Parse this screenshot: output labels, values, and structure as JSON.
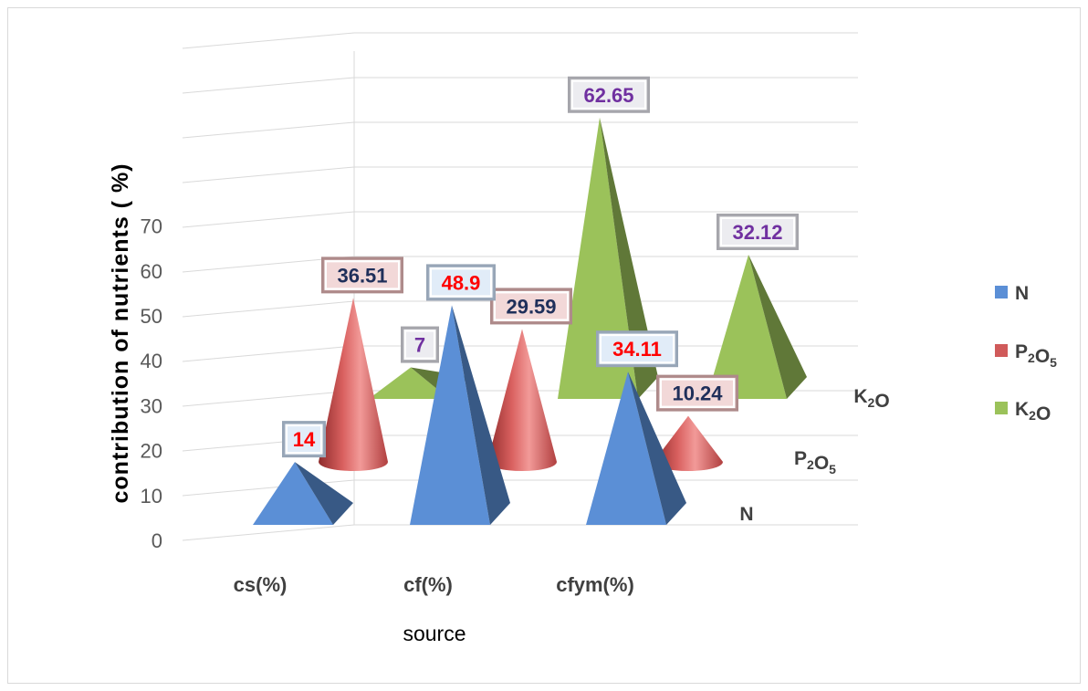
{
  "chart_data": {
    "type": "bar",
    "subtype": "3d-pyramid-cone",
    "title": "",
    "xlabel": "source",
    "ylabel": "contribution of nutrients ( %)",
    "categories": [
      "cs(%)",
      "cf(%)",
      "cfym(%)"
    ],
    "series_axis_labels": [
      "N",
      "P2O5",
      "K2O"
    ],
    "ylim": [
      0,
      70
    ],
    "yticks": [
      0,
      10,
      20,
      30,
      40,
      50,
      60,
      70
    ],
    "grid": true,
    "legend_position": "right",
    "series": [
      {
        "name": "N",
        "shape": "pyramid",
        "color": "#5b8fd6",
        "label_color": "#ff0000",
        "values": [
          14,
          48.9,
          34.11
        ]
      },
      {
        "name": "P2O5",
        "shape": "cone",
        "color": "#d05a5a",
        "label_color": "#1f2f5a",
        "values": [
          36.51,
          29.59,
          10.24
        ]
      },
      {
        "name": "K2O",
        "shape": "pyramid",
        "color": "#9bc25a",
        "label_color": "#7030a0",
        "values": [
          7,
          62.65,
          32.12
        ]
      }
    ],
    "data_labels": [
      [
        "14",
        "48.9",
        "34.11"
      ],
      [
        "36.51",
        "29.59",
        "10.24"
      ],
      [
        "7",
        "62.65",
        "32.12"
      ]
    ]
  }
}
